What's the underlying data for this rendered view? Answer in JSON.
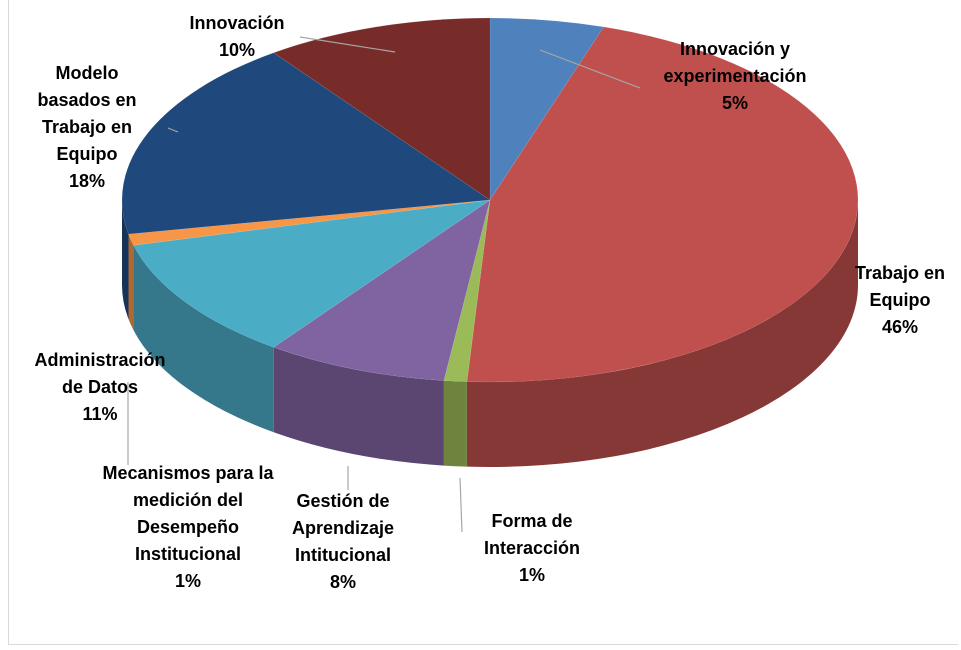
{
  "chart_data": {
    "type": "pie",
    "categories": [
      "Innovación y experimentación",
      "Trabajo en Equipo",
      "Forma de Interacción",
      "Gestión de Aprendizaje Intitucional",
      "Administración de Datos",
      "Mecanismos para la medición del Desempeño Institucional",
      "Modelo basados en Trabajo en Equipo",
      "Innovación"
    ],
    "values": [
      5,
      46,
      1,
      8,
      11,
      1,
      18,
      10
    ],
    "value_labels": [
      "5%",
      "46%",
      "1%",
      "8%",
      "11%",
      "1%",
      "18%",
      "10%"
    ],
    "colors": [
      "#4f81bd",
      "#c0504d",
      "#9bbb59",
      "#8064a2",
      "#4bacc6",
      "#f79646",
      "#1f497d",
      "#772c2a"
    ]
  }
}
